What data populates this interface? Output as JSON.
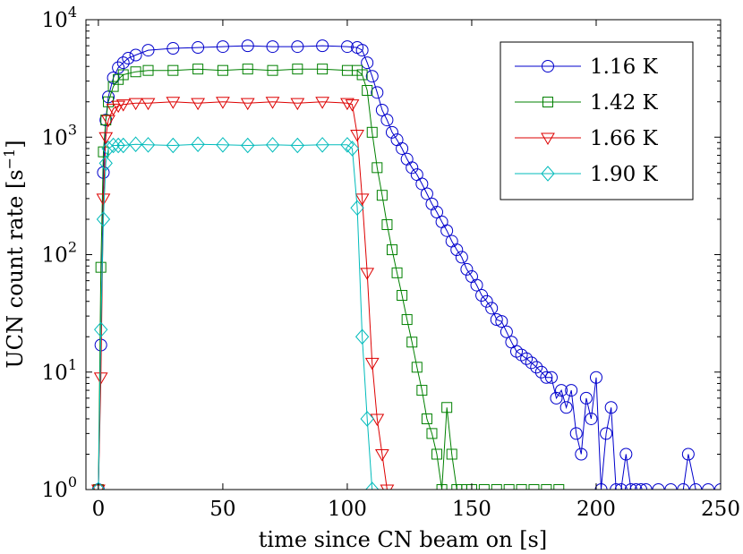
{
  "chart_data": {
    "type": "line",
    "title": "",
    "xlabel": "time since CN beam on [s]",
    "ylabel": "UCN count rate [s",
    "ylabel_superscript": "−1",
    "ylabel_suffix": "]",
    "xscale": "linear",
    "yscale": "log",
    "xlim": [
      -5,
      250
    ],
    "ylim": [
      1,
      10000
    ],
    "xticks": [
      0,
      50,
      100,
      150,
      200,
      250
    ],
    "xtick_labels": [
      "0",
      "50",
      "100",
      "150",
      "200",
      "250"
    ],
    "yticks": [
      1,
      10,
      100,
      1000,
      10000
    ],
    "ytick_labels": [
      {
        "base": "10",
        "exp": "0"
      },
      {
        "base": "10",
        "exp": "1"
      },
      {
        "base": "10",
        "exp": "2"
      },
      {
        "base": "10",
        "exp": "3"
      },
      {
        "base": "10",
        "exp": "4"
      }
    ],
    "grid": false,
    "legend_position": "top-right",
    "series": [
      {
        "name": "1.16 K",
        "color": "#0000cc",
        "marker": "circle",
        "x": [
          0,
          1,
          2,
          3,
          4,
          6,
          8,
          10,
          12,
          15,
          20,
          30,
          40,
          50,
          60,
          70,
          80,
          90,
          100,
          104,
          106,
          108,
          110,
          112,
          114,
          116,
          118,
          120,
          122,
          124,
          126,
          128,
          130,
          132,
          134,
          136,
          138,
          140,
          142,
          144,
          146,
          148,
          150,
          152,
          154,
          156,
          158,
          160,
          162,
          164,
          166,
          168,
          170,
          172,
          174,
          176,
          178,
          180,
          182,
          184,
          186,
          188,
          190,
          192,
          194,
          196,
          198,
          200,
          202,
          204,
          206,
          208,
          210,
          212,
          214,
          216,
          218,
          220,
          225,
          230,
          235,
          237,
          240,
          245,
          250
        ],
        "y": [
          1,
          17,
          500,
          1400,
          2200,
          3200,
          3900,
          4300,
          4700,
          5000,
          5500,
          5700,
          5800,
          5900,
          6000,
          5900,
          5900,
          6000,
          5900,
          5800,
          5500,
          4300,
          3300,
          2400,
          1700,
          1400,
          1100,
          950,
          800,
          650,
          550,
          480,
          400,
          330,
          270,
          230,
          190,
          160,
          130,
          110,
          95,
          75,
          65,
          55,
          45,
          40,
          35,
          28,
          27,
          22,
          18,
          15,
          14,
          13,
          12,
          11,
          10,
          9,
          9,
          6,
          7,
          5,
          7,
          3,
          2,
          6,
          4,
          9,
          1,
          3,
          5,
          1,
          1,
          2,
          1,
          1,
          1,
          1,
          1,
          1,
          1,
          2,
          1,
          1,
          1
        ]
      },
      {
        "name": "1.42 K",
        "color": "#008000",
        "marker": "square",
        "x": [
          0,
          1,
          2,
          3,
          4,
          6,
          8,
          10,
          15,
          20,
          30,
          40,
          50,
          60,
          70,
          80,
          90,
          100,
          104,
          106,
          108,
          110,
          112,
          114,
          116,
          118,
          120,
          122,
          124,
          126,
          128,
          130,
          132,
          134,
          136,
          138,
          140,
          142,
          144,
          146,
          148,
          150,
          155,
          160,
          165,
          170,
          175,
          180,
          185
        ],
        "y": [
          1,
          78,
          750,
          1400,
          2000,
          2700,
          3100,
          3400,
          3600,
          3700,
          3700,
          3800,
          3700,
          3800,
          3700,
          3800,
          3800,
          3700,
          3700,
          3400,
          2500,
          1100,
          550,
          320,
          180,
          110,
          70,
          45,
          28,
          18,
          11,
          7,
          4,
          3,
          2,
          1,
          5,
          2,
          1,
          1,
          1,
          1,
          1,
          1,
          1,
          1,
          1,
          1,
          1
        ]
      },
      {
        "name": "1.66 K",
        "color": "#dd0000",
        "marker": "triangle-down",
        "x": [
          0,
          1,
          2,
          3,
          4,
          6,
          8,
          10,
          15,
          20,
          30,
          40,
          50,
          60,
          70,
          80,
          90,
          100,
          102,
          104,
          106,
          108,
          110,
          112,
          114,
          116
        ],
        "y": [
          1,
          9,
          300,
          1000,
          1400,
          1750,
          1850,
          1900,
          1950,
          1950,
          2000,
          1950,
          2000,
          1950,
          2000,
          1950,
          2000,
          1950,
          1900,
          1050,
          300,
          70,
          12,
          4,
          2,
          1
        ]
      },
      {
        "name": "1.90 K",
        "color": "#00bbbb",
        "marker": "diamond",
        "x": [
          0,
          1,
          2,
          3,
          4,
          6,
          8,
          10,
          15,
          20,
          30,
          40,
          50,
          60,
          70,
          80,
          90,
          100,
          102,
          104,
          106,
          108,
          110
        ],
        "y": [
          1,
          23,
          200,
          600,
          800,
          850,
          850,
          850,
          870,
          860,
          850,
          870,
          860,
          850,
          860,
          850,
          860,
          860,
          800,
          250,
          20,
          4,
          1
        ]
      }
    ]
  }
}
